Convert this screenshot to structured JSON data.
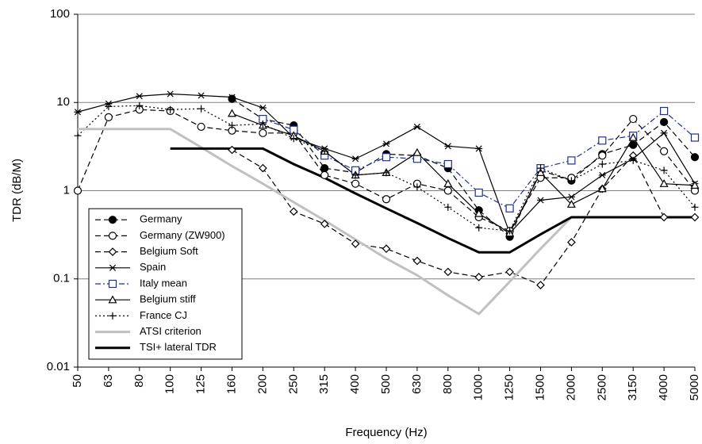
{
  "chart_data": {
    "type": "line",
    "x_label": "Frequency (Hz)",
    "y_label": "TDR (dB/M)",
    "log_scale_y": true,
    "grid": true,
    "legend": "lower left",
    "categories": [
      "50",
      "63",
      "80",
      "100",
      "125",
      "160",
      "200",
      "250",
      "315",
      "400",
      "500",
      "630",
      "800",
      "1000",
      "1250",
      "1500",
      "2000",
      "2500",
      "3150",
      "4000",
      "5000"
    ],
    "ylim": [
      0.01,
      100
    ],
    "yticks": [
      0.01,
      0.1,
      1,
      10,
      100
    ],
    "series": [
      {
        "name": "Germany",
        "color": "#000000",
        "marker": "filled-circle",
        "dash": "dashed",
        "values": [
          null,
          null,
          null,
          null,
          null,
          11,
          6.5,
          5.5,
          1.8,
          1.6,
          2.6,
          2.5,
          1.8,
          0.6,
          0.3,
          1.7,
          1.3,
          2.6,
          3.3,
          6,
          2.4
        ]
      },
      {
        "name": "Germany (ZW900)",
        "color": "#000000",
        "marker": "open-circle",
        "dash": "dashed",
        "values": [
          1,
          6.8,
          8.3,
          8,
          5.3,
          4.8,
          4.5,
          4.5,
          1.5,
          1.2,
          0.8,
          1.2,
          1,
          0.5,
          0.35,
          1.4,
          1.4,
          2.5,
          6.5,
          2.8,
          1
        ]
      },
      {
        "name": "Belgium Soft",
        "color": "#000000",
        "marker": "diamond",
        "dash": "dashed",
        "values": [
          null,
          null,
          null,
          null,
          null,
          2.9,
          1.8,
          0.58,
          0.42,
          0.25,
          0.22,
          0.16,
          0.12,
          0.105,
          0.12,
          0.085,
          0.26,
          1.05,
          2.5,
          0.5,
          0.5
        ]
      },
      {
        "name": "Spain",
        "color": "#000000",
        "marker": "asterisk",
        "dash": "solid",
        "values": [
          7.8,
          9.7,
          11.8,
          12.5,
          12,
          11.5,
          8.7,
          4,
          3,
          2.3,
          3.4,
          5.3,
          3.2,
          3,
          0.33,
          0.78,
          0.85,
          1.5,
          2.3,
          4.5,
          1.2
        ]
      },
      {
        "name": "Italy mean",
        "color": "#1f2f99",
        "marker": "square",
        "dash": "dashdot",
        "values": [
          null,
          null,
          null,
          null,
          null,
          null,
          6.5,
          4.9,
          2.5,
          1.7,
          2.4,
          2.3,
          2,
          0.95,
          0.63,
          1.8,
          2.2,
          3.7,
          4.2,
          8,
          4
        ]
      },
      {
        "name": "Belgium stiff",
        "color": "#000000",
        "marker": "triangle",
        "dash": "solid",
        "values": [
          null,
          null,
          null,
          null,
          null,
          7.5,
          5.5,
          4.2,
          2.8,
          1.5,
          1.6,
          2.7,
          1.2,
          0.55,
          0.33,
          1.6,
          0.7,
          1.05,
          4,
          1.2,
          1.15
        ]
      },
      {
        "name": "France CJ",
        "color": "#000000",
        "marker": "plus",
        "dash": "dotted",
        "values": [
          4.2,
          9,
          9.2,
          8.3,
          8.5,
          5.5,
          5.7,
          3.9,
          2.8,
          1.5,
          1.6,
          1.1,
          0.65,
          0.38,
          0.35,
          1.8,
          1.3,
          2,
          2.2,
          1.7,
          0.65
        ]
      },
      {
        "name": "ATSI criterion",
        "color": "#c0c0c0",
        "marker": "none",
        "dash": "thick",
        "values": [
          5,
          5,
          5,
          5,
          3.1,
          1.9,
          1.2,
          0.74,
          0.46,
          0.28,
          0.17,
          0.11,
          0.065,
          0.04,
          0.093,
          0.22,
          0.5,
          null,
          null,
          null,
          null
        ]
      },
      {
        "name": "TSI+ lateral TDR",
        "color": "#000000",
        "marker": "none",
        "dash": "thick",
        "values": [
          null,
          null,
          null,
          3,
          3,
          3,
          3,
          2,
          1.4,
          0.93,
          0.63,
          0.43,
          0.29,
          0.2,
          0.2,
          0.32,
          0.5,
          0.5,
          0.5,
          0.5,
          0.5
        ]
      }
    ]
  }
}
